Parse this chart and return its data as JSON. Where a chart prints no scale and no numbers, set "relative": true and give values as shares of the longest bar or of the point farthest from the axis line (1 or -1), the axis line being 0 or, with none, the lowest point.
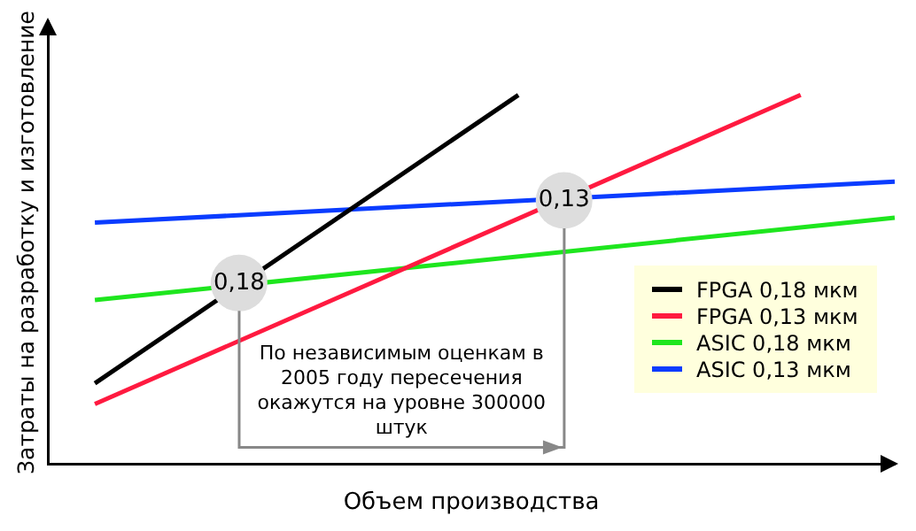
{
  "chart_data": {
    "type": "line",
    "relative": true,
    "xlabel": "Объем производства",
    "ylabel": "Затраты на разработку и изготовление",
    "grid": false,
    "legend": "bottom right",
    "marker": "none",
    "line_style": "solid",
    "categories": [
      null,
      null,
      null,
      null,
      null,
      null,
      null,
      null,
      null,
      null,
      null,
      null,
      null,
      null,
      null,
      null,
      null,
      null,
      null
    ],
    "series": [
      {
        "name": "FPGA 0,18 мкм",
        "color": "#000000",
        "values": [
          null,
          0.218,
          null,
          null,
          null,
          null,
          null,
          null,
          null,
          null,
          1.0,
          null,
          null,
          null,
          null,
          null,
          null,
          null,
          null
        ]
      },
      {
        "name": "FPGA 0,13 мкм",
        "color": "#ff1a40",
        "values": [
          null,
          0.162,
          null,
          null,
          null,
          null,
          null,
          null,
          null,
          null,
          null,
          null,
          null,
          null,
          null,
          null,
          1.0,
          null,
          null
        ]
      },
      {
        "name": "ASIC 0,18 мкм",
        "color": "#1ee61e",
        "values": [
          null,
          0.444,
          null,
          null,
          null,
          null,
          null,
          null,
          null,
          null,
          null,
          null,
          null,
          null,
          null,
          null,
          null,
          null,
          0.667
        ]
      },
      {
        "name": "ASIC 0,13 мкм",
        "color": "#0a3cff",
        "values": [
          null,
          0.654,
          null,
          null,
          null,
          null,
          null,
          null,
          null,
          null,
          null,
          null,
          null,
          null,
          null,
          null,
          null,
          null,
          0.765
        ]
      }
    ],
    "annotations": [
      {
        "text": "0,18",
        "y": 0.49
      },
      {
        "text": "0,13",
        "y": 0.714
      },
      "По независимым оценкам в 2005 году пересечения окажутся на уровне 300000 штук"
    ]
  }
}
